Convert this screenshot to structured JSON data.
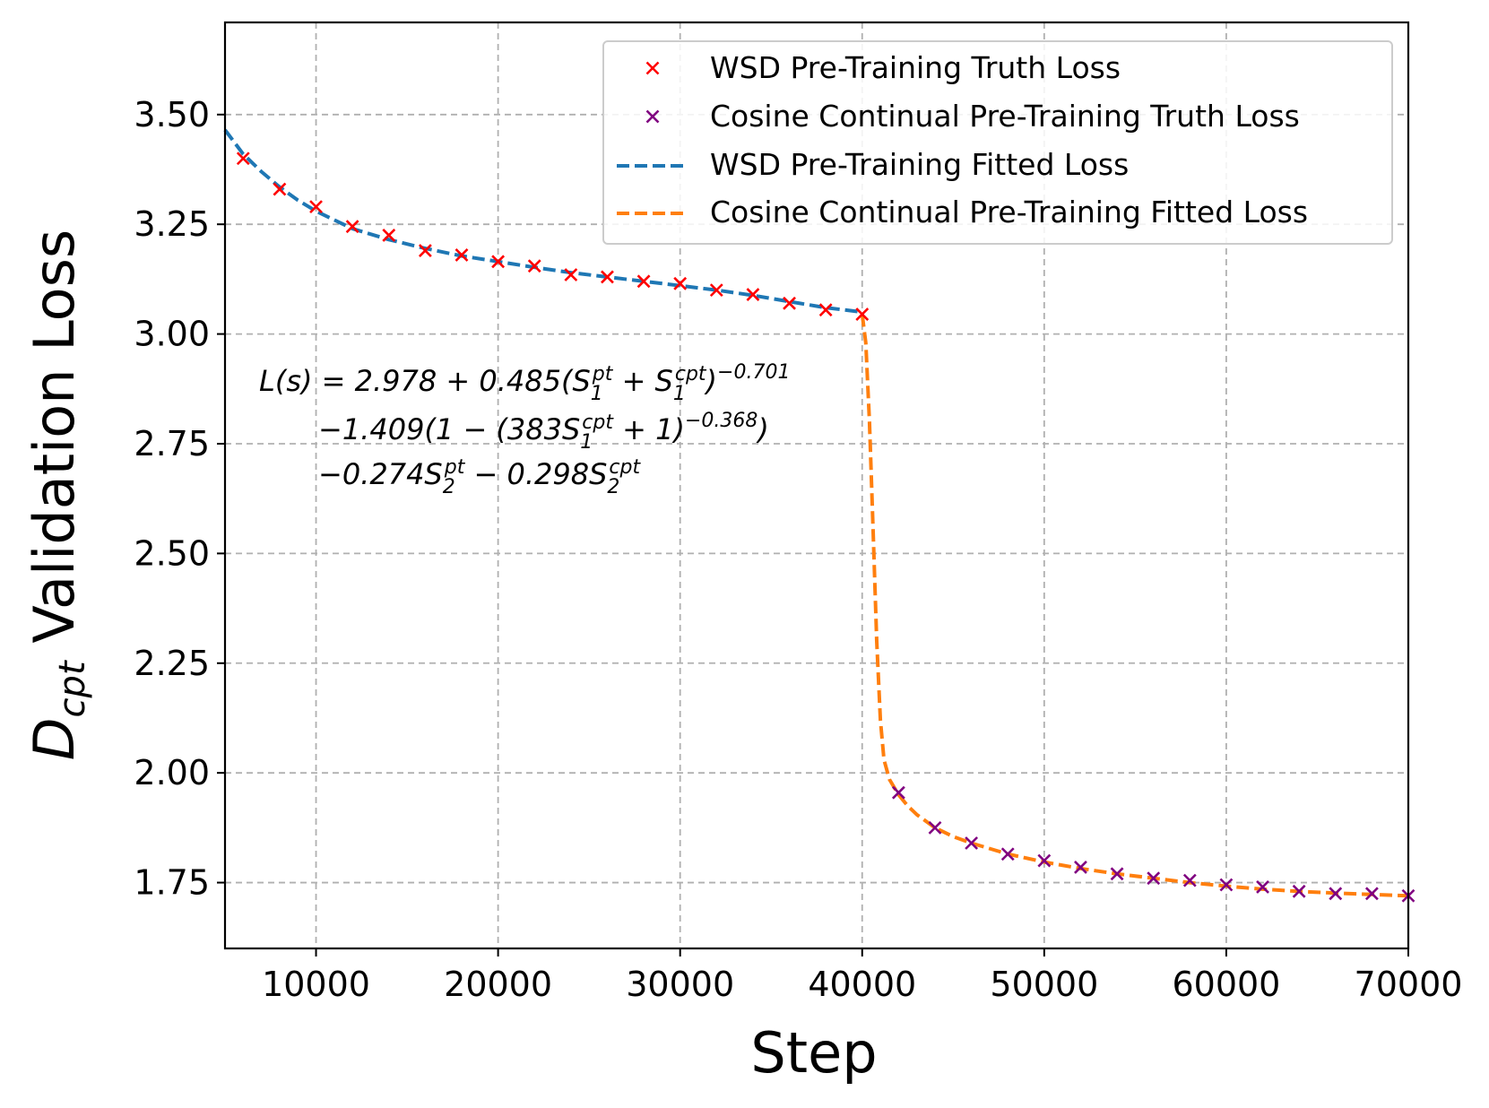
{
  "chart_data": {
    "type": "line",
    "xlabel": "Step",
    "ylabel": {
      "prefix": "D",
      "subscript": "cpt",
      "rest": " Validation Loss"
    },
    "xlim": [
      5000,
      70000
    ],
    "ylim": [
      1.6,
      3.71
    ],
    "xticks": [
      10000,
      20000,
      30000,
      40000,
      50000,
      60000,
      70000
    ],
    "yticks": [
      1.75,
      2.0,
      2.25,
      2.5,
      2.75,
      3.0,
      3.25,
      3.5
    ],
    "ytick_labels": [
      "1.75",
      "2.00",
      "2.25",
      "2.50",
      "2.75",
      "3.00",
      "3.25",
      "3.50"
    ],
    "grid": true,
    "legend_position": "top-right",
    "series": [
      {
        "name": "WSD Pre-Training Truth Loss",
        "kind": "marker",
        "color": "#ff0000",
        "x": [
          6000,
          8000,
          10000,
          12000,
          14000,
          16000,
          18000,
          20000,
          22000,
          24000,
          26000,
          28000,
          30000,
          32000,
          34000,
          36000,
          38000,
          40000
        ],
        "y": [
          3.4,
          3.33,
          3.29,
          3.245,
          3.225,
          3.19,
          3.18,
          3.165,
          3.155,
          3.135,
          3.13,
          3.12,
          3.115,
          3.1,
          3.09,
          3.07,
          3.055,
          3.045
        ]
      },
      {
        "name": "Cosine Continual Pre-Training Truth Loss",
        "kind": "marker",
        "color": "#800080",
        "x": [
          42000,
          44000,
          46000,
          48000,
          50000,
          52000,
          54000,
          56000,
          58000,
          60000,
          62000,
          64000,
          66000,
          68000,
          70000
        ],
        "y": [
          1.955,
          1.875,
          1.84,
          1.815,
          1.8,
          1.785,
          1.77,
          1.76,
          1.755,
          1.745,
          1.74,
          1.73,
          1.725,
          1.725,
          1.72
        ]
      },
      {
        "name": "WSD Pre-Training Fitted Loss",
        "kind": "dashed-line",
        "color": "#1f77b4",
        "x": [
          5000,
          6000,
          7000,
          8000,
          9000,
          10000,
          11000,
          12000,
          14000,
          16000,
          18000,
          20000,
          22000,
          24000,
          26000,
          28000,
          30000,
          32000,
          34000,
          36000,
          38000,
          40000
        ],
        "y": [
          3.465,
          3.41,
          3.37,
          3.335,
          3.305,
          3.28,
          3.26,
          3.24,
          3.215,
          3.195,
          3.178,
          3.165,
          3.152,
          3.14,
          3.13,
          3.12,
          3.11,
          3.1,
          3.088,
          3.074,
          3.06,
          3.05
        ]
      },
      {
        "name": "Cosine Continual Pre-Training Fitted Loss",
        "kind": "dashed-line",
        "color": "#ff7f0e",
        "x": [
          40000,
          40200,
          40400,
          40600,
          40800,
          41000,
          41200,
          41500,
          42000,
          42500,
          43000,
          44000,
          45000,
          46000,
          48000,
          50000,
          52000,
          54000,
          56000,
          58000,
          60000,
          62000,
          64000,
          66000,
          68000,
          70000
        ],
        "y": [
          3.045,
          2.98,
          2.8,
          2.55,
          2.3,
          2.12,
          2.03,
          1.985,
          1.95,
          1.925,
          1.905,
          1.875,
          1.855,
          1.84,
          1.815,
          1.797,
          1.782,
          1.77,
          1.76,
          1.75,
          1.742,
          1.735,
          1.73,
          1.726,
          1.723,
          1.72
        ]
      }
    ],
    "annotation": {
      "lines": [
        "L(s) = 2.978 + 0.485(S1^pt + S1^cpt)^-0.701",
        "-1.409(1 - (383S1^cpt + 1)^-0.368)",
        "-0.274S2^pt - 0.298S2^cpt"
      ],
      "parts": {
        "l1a": "L(s) = 2.978 + 0.485(S",
        "l1b": "1",
        "l1c": "pt",
        "l1d": " + S",
        "l1e": "1",
        "l1f": "cpt",
        "l1g": ")",
        "l1h": "−0.701",
        "l2a": "−1.409(1 − (383S",
        "l2b": "1",
        "l2c": "cpt",
        "l2d": " + 1)",
        "l2e": "−0.368",
        "l2f": ")",
        "l3a": "−0.274S",
        "l3b": "2",
        "l3c": "pt",
        "l3d": " − 0.298S",
        "l3e": "2",
        "l3f": "cpt"
      }
    }
  }
}
